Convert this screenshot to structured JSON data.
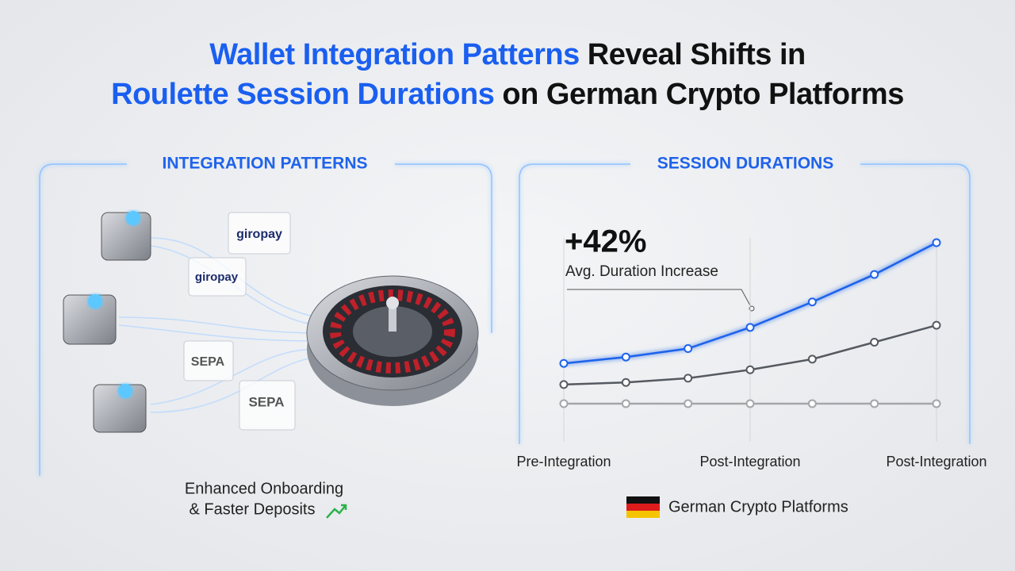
{
  "title": {
    "lines": [
      [
        {
          "text": "Wallet Integration Patterns",
          "color": "#1a5ff0"
        },
        {
          "text": " Reveal Shifts in",
          "color": "#111111"
        }
      ],
      [
        {
          "text": "Roulette Session Durations",
          "color": "#1a5ff0"
        },
        {
          "text": " on German Crypto Platforms",
          "color": "#111111"
        }
      ]
    ]
  },
  "left_panel": {
    "title": "INTEGRATION PATTERNS",
    "badges": [
      "giropay",
      "giropay",
      "SEPA",
      "SEPA"
    ],
    "caption": [
      "Enhanced Onboarding",
      "& Faster Deposits"
    ]
  },
  "chart_data": {
    "type": "line",
    "title": "SESSION DURATIONS",
    "categories": [
      "Pre-Integration",
      null,
      null,
      "Post-Integration",
      null,
      null,
      "Post-Integration"
    ],
    "series": [
      {
        "color": "#1f63ea",
        "values": [
          37,
          40,
          44,
          54,
          66,
          79,
          94
        ]
      },
      {
        "color": "#555a61",
        "values": [
          27,
          28,
          30,
          34,
          39,
          47,
          55
        ]
      },
      {
        "color": "#a3a6aa",
        "values": [
          18,
          18,
          18,
          18,
          18,
          18,
          18
        ]
      }
    ],
    "ylim": [
      0,
      100
    ],
    "annotation": {
      "value": "+42%",
      "text": "Avg. Duration Increase"
    },
    "caption": "German Crypto Platforms"
  }
}
